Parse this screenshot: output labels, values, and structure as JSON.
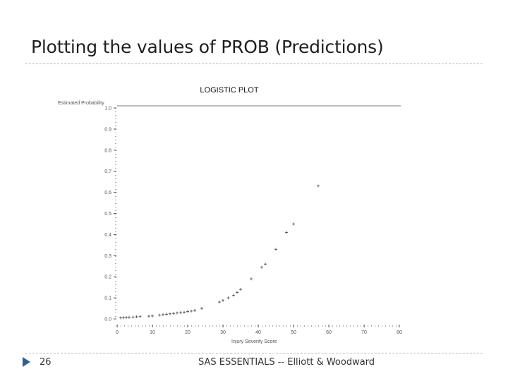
{
  "slide": {
    "title": "Plotting the values of PROB (Predictions)",
    "page_number": "26",
    "footer": "SAS ESSENTIALS -- Elliott & Woodward"
  },
  "colors": {
    "accent": "#2f5f8f",
    "marker": "#444444",
    "axis": "#555555"
  },
  "chart_data": {
    "type": "scatter",
    "title": "LOGISTIC PLOT",
    "xlabel": "Injury Severity Score",
    "ylabel": "Estimated Probability",
    "xlim": [
      0,
      80
    ],
    "ylim": [
      0,
      1
    ],
    "x_ticks": [
      0,
      10,
      20,
      30,
      40,
      50,
      60,
      70,
      80
    ],
    "x_tick_labels": [
      "0",
      "10",
      "20",
      "30",
      "40",
      "50",
      "60",
      "70",
      "80"
    ],
    "y_ticks": [
      0,
      0.1,
      0.2,
      0.3,
      0.4,
      0.5,
      0.6,
      0.7,
      0.8,
      0.9,
      1.0
    ],
    "y_tick_labels": [
      "0.0",
      "0.1",
      "0.2",
      "0.3",
      "0.4",
      "0.5",
      "0.6",
      "0.7",
      "0.8",
      "0.9",
      "1.0"
    ],
    "marker": "+",
    "points": [
      {
        "x": 1,
        "y": 0.005
      },
      {
        "x": 1.8,
        "y": 0.006
      },
      {
        "x": 2.6,
        "y": 0.007
      },
      {
        "x": 3.4,
        "y": 0.008
      },
      {
        "x": 4.5,
        "y": 0.009
      },
      {
        "x": 5.5,
        "y": 0.01
      },
      {
        "x": 6.5,
        "y": 0.011
      },
      {
        "x": 9,
        "y": 0.013
      },
      {
        "x": 10,
        "y": 0.014
      },
      {
        "x": 12,
        "y": 0.018
      },
      {
        "x": 13,
        "y": 0.02
      },
      {
        "x": 14,
        "y": 0.022
      },
      {
        "x": 15,
        "y": 0.024
      },
      {
        "x": 16,
        "y": 0.026
      },
      {
        "x": 17,
        "y": 0.028
      },
      {
        "x": 18,
        "y": 0.03
      },
      {
        "x": 19,
        "y": 0.032
      },
      {
        "x": 20,
        "y": 0.035
      },
      {
        "x": 21,
        "y": 0.037
      },
      {
        "x": 22,
        "y": 0.04
      },
      {
        "x": 24,
        "y": 0.05
      },
      {
        "x": 29,
        "y": 0.08
      },
      {
        "x": 30,
        "y": 0.088
      },
      {
        "x": 31.5,
        "y": 0.1
      },
      {
        "x": 33,
        "y": 0.112
      },
      {
        "x": 34,
        "y": 0.125
      },
      {
        "x": 35,
        "y": 0.14
      },
      {
        "x": 38,
        "y": 0.19
      },
      {
        "x": 41,
        "y": 0.245
      },
      {
        "x": 42,
        "y": 0.26
      },
      {
        "x": 45,
        "y": 0.33
      },
      {
        "x": 48,
        "y": 0.41
      },
      {
        "x": 50,
        "y": 0.45
      },
      {
        "x": 57,
        "y": 0.63
      }
    ]
  }
}
